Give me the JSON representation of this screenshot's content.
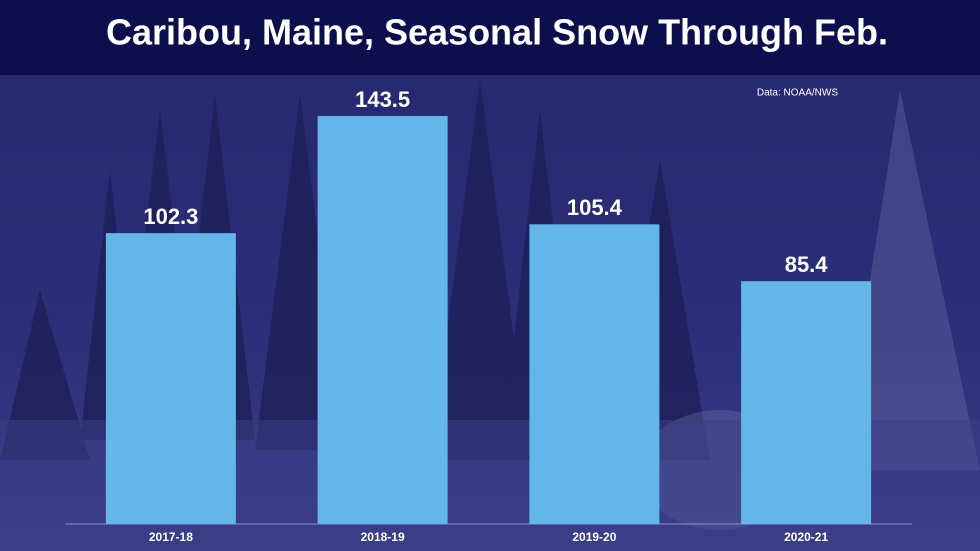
{
  "chart_data": {
    "type": "bar",
    "title": "Caribou, Maine, Seasonal Snow Through Feb.",
    "source": "Data: NOAA/NWS",
    "categories": [
      "2017-18",
      "2018-19",
      "2019-20",
      "2020-21"
    ],
    "values": [
      102.3,
      143.5,
      105.4,
      85.4
    ],
    "color": "#62b6e8"
  }
}
